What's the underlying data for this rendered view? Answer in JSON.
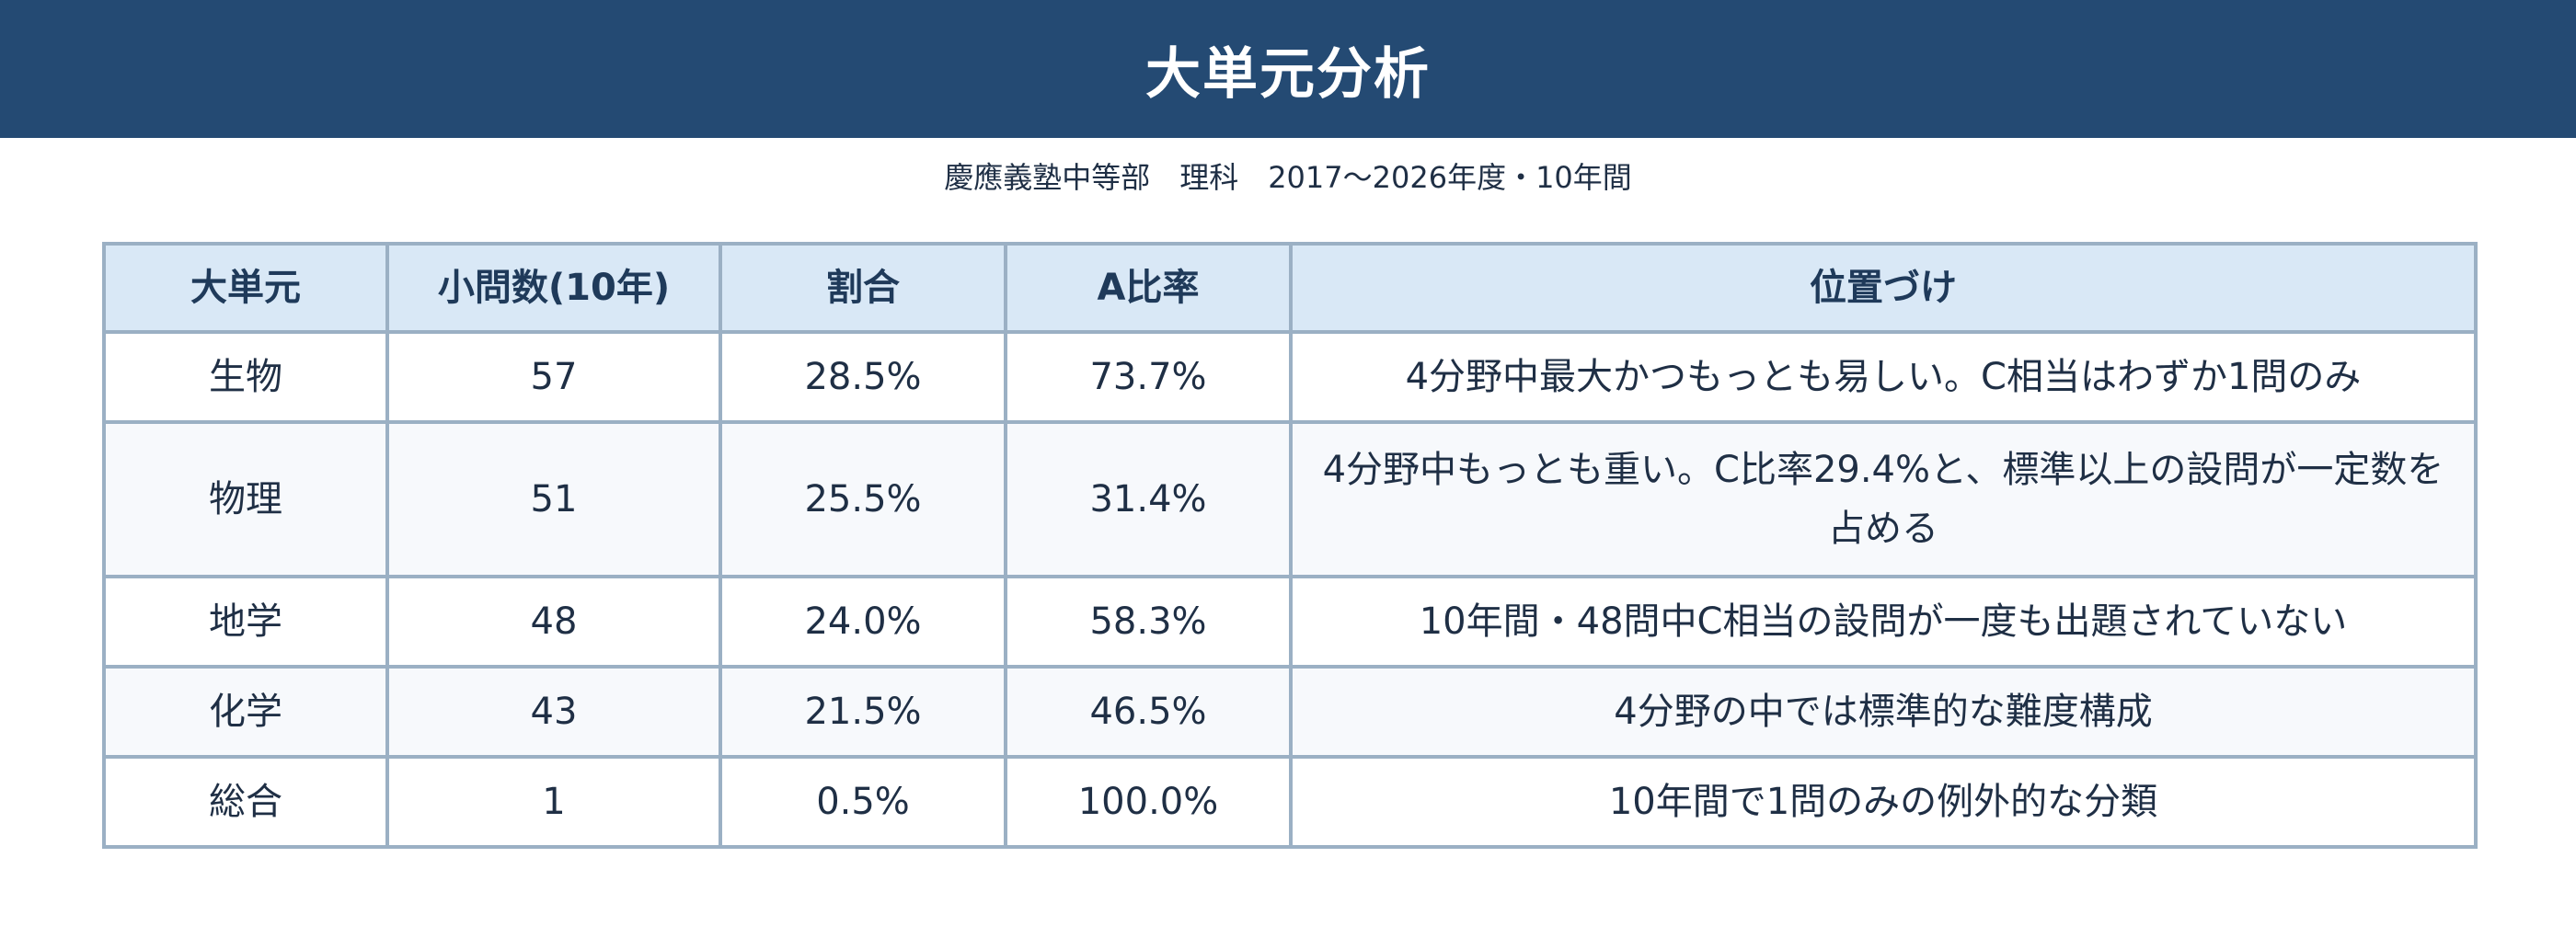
{
  "header": {
    "title": "大単元分析"
  },
  "subtitle": "慶應義塾中等部　理科　2017〜2026年度・10年間",
  "table": {
    "columns": [
      "大単元",
      "小問数(10年)",
      "割合",
      "A比率",
      "位置づけ"
    ],
    "rows": [
      {
        "unit": "生物",
        "count": "57",
        "ratio": "28.5%",
        "a_ratio": "73.7%",
        "position": "4分野中最大かつもっとも易しい。C相当はわずか1問のみ"
      },
      {
        "unit": "物理",
        "count": "51",
        "ratio": "25.5%",
        "a_ratio": "31.4%",
        "position": "4分野中もっとも重い。C比率29.4%と、標準以上の設問が一定数を占める"
      },
      {
        "unit": "地学",
        "count": "48",
        "ratio": "24.0%",
        "a_ratio": "58.3%",
        "position": "10年間・48問中C相当の設問が一度も出題されていない"
      },
      {
        "unit": "化学",
        "count": "43",
        "ratio": "21.5%",
        "a_ratio": "46.5%",
        "position": "4分野の中では標準的な難度構成"
      },
      {
        "unit": "総合",
        "count": "1",
        "ratio": "0.5%",
        "a_ratio": "100.0%",
        "position": "10年間で1問のみの例外的な分類"
      }
    ]
  }
}
